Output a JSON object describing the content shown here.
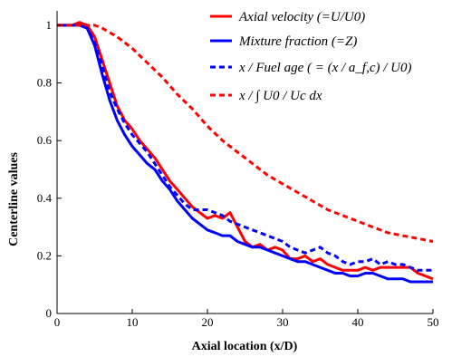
{
  "chart_data": {
    "type": "line",
    "title": "",
    "xlabel": "Axial location (x/D)",
    "ylabel": "Centerline values",
    "xlim": [
      0,
      50
    ],
    "ylim": [
      0,
      1.05
    ],
    "x_ticks": [
      "0",
      "10",
      "20",
      "30",
      "40",
      "50"
    ],
    "y_ticks": [
      "0",
      "0.2",
      "0.4",
      "0.6",
      "0.8",
      "1"
    ],
    "legend_position": "top-right",
    "grid": false,
    "series": [
      {
        "name": "Axial velocity (=U/U0)",
        "legend_label": "Axial velocity (=U/U0)",
        "color": "#ff0000",
        "dash": "solid",
        "x": [
          0,
          2,
          3,
          4,
          5,
          6,
          7,
          8,
          9,
          10,
          11,
          12,
          13,
          14,
          15,
          16,
          17,
          18,
          19,
          20,
          21,
          22,
          23,
          24,
          25,
          26,
          27,
          28,
          29,
          30,
          31,
          32,
          33,
          34,
          35,
          36,
          37,
          38,
          39,
          40,
          41,
          42,
          43,
          44,
          45,
          46,
          47,
          48,
          49,
          50
        ],
        "y": [
          1.0,
          1.0,
          1.01,
          1.0,
          0.96,
          0.88,
          0.8,
          0.72,
          0.67,
          0.64,
          0.6,
          0.57,
          0.54,
          0.5,
          0.46,
          0.43,
          0.4,
          0.37,
          0.35,
          0.33,
          0.34,
          0.33,
          0.35,
          0.3,
          0.25,
          0.23,
          0.24,
          0.22,
          0.23,
          0.22,
          0.19,
          0.19,
          0.2,
          0.18,
          0.19,
          0.17,
          0.16,
          0.15,
          0.15,
          0.15,
          0.16,
          0.15,
          0.16,
          0.16,
          0.16,
          0.16,
          0.16,
          0.14,
          0.13,
          0.12
        ]
      },
      {
        "name": "Mixture fraction (=Z)",
        "legend_label": "Mixture fraction (=Z)",
        "color": "#0000ff",
        "dash": "solid",
        "x": [
          0,
          2,
          3,
          4,
          5,
          6,
          7,
          8,
          9,
          10,
          11,
          12,
          13,
          14,
          15,
          16,
          17,
          18,
          19,
          20,
          21,
          22,
          23,
          24,
          25,
          26,
          27,
          28,
          29,
          30,
          31,
          32,
          33,
          34,
          35,
          36,
          37,
          38,
          39,
          40,
          41,
          42,
          43,
          44,
          45,
          46,
          47,
          48,
          49,
          50
        ],
        "y": [
          1.0,
          1.0,
          1.0,
          0.99,
          0.93,
          0.83,
          0.74,
          0.67,
          0.62,
          0.58,
          0.55,
          0.52,
          0.5,
          0.46,
          0.43,
          0.39,
          0.36,
          0.33,
          0.31,
          0.29,
          0.28,
          0.27,
          0.27,
          0.25,
          0.24,
          0.23,
          0.23,
          0.22,
          0.21,
          0.2,
          0.19,
          0.18,
          0.18,
          0.17,
          0.16,
          0.15,
          0.14,
          0.14,
          0.13,
          0.13,
          0.14,
          0.14,
          0.13,
          0.12,
          0.12,
          0.12,
          0.11,
          0.11,
          0.11,
          0.11
        ]
      },
      {
        "name": "x / Fuel age ( = (x / a_f,c) / U0)",
        "legend_label": "x / Fuel age ( = (x / a_f,c) / U0)",
        "color": "#0000ff",
        "dash": "dashed",
        "x": [
          0,
          2,
          3,
          4,
          5,
          6,
          7,
          8,
          9,
          10,
          11,
          12,
          13,
          14,
          15,
          16,
          17,
          18,
          19,
          20,
          21,
          22,
          23,
          24,
          25,
          26,
          27,
          28,
          29,
          30,
          31,
          32,
          33,
          34,
          35,
          36,
          37,
          38,
          39,
          40,
          41,
          42,
          43,
          44,
          45,
          46,
          47,
          48,
          49,
          50
        ],
        "y": [
          1.0,
          1.0,
          1.0,
          0.99,
          0.94,
          0.86,
          0.77,
          0.71,
          0.66,
          0.62,
          0.59,
          0.56,
          0.52,
          0.48,
          0.44,
          0.41,
          0.38,
          0.36,
          0.36,
          0.36,
          0.35,
          0.34,
          0.32,
          0.31,
          0.3,
          0.29,
          0.28,
          0.27,
          0.26,
          0.25,
          0.23,
          0.22,
          0.21,
          0.22,
          0.23,
          0.21,
          0.2,
          0.18,
          0.17,
          0.18,
          0.18,
          0.19,
          0.17,
          0.18,
          0.17,
          0.17,
          0.16,
          0.15,
          0.15,
          0.15
        ]
      },
      {
        "name": "x / ∫ U0 / Uc dx",
        "legend_label": "x / ∫ U0 / Uc dx",
        "color": "#ff0000",
        "dash": "dashed",
        "x": [
          0,
          2,
          4,
          5,
          6,
          8,
          10,
          12,
          14,
          16,
          18,
          20,
          22,
          24,
          26,
          28,
          30,
          32,
          34,
          36,
          38,
          40,
          42,
          44,
          46,
          48,
          50
        ],
        "y": [
          1.0,
          1.0,
          1.0,
          1.0,
          0.99,
          0.96,
          0.92,
          0.87,
          0.82,
          0.76,
          0.71,
          0.65,
          0.6,
          0.56,
          0.52,
          0.48,
          0.45,
          0.42,
          0.39,
          0.36,
          0.34,
          0.32,
          0.3,
          0.28,
          0.27,
          0.26,
          0.25
        ]
      }
    ]
  }
}
